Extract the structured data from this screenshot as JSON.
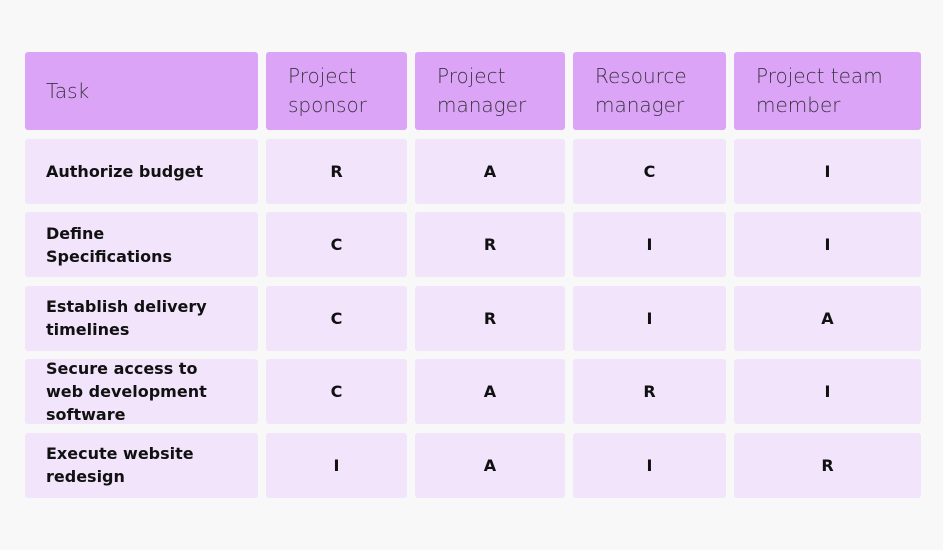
{
  "table": {
    "header": [
      "Task",
      "Project sponsor",
      "Project manager",
      "Resource manager",
      "Project team member"
    ],
    "rows": [
      [
        "Authorize budget",
        "R",
        "A",
        "C",
        "I"
      ],
      [
        "Define Specifications",
        "C",
        "R",
        "I",
        "I"
      ],
      [
        "Establish delivery timelines",
        "C",
        "R",
        "I",
        "A"
      ],
      [
        "Secure access to web development software",
        "C",
        "A",
        "R",
        "I"
      ],
      [
        "Execute website redesign",
        "I",
        "A",
        "I",
        "R"
      ]
    ]
  }
}
